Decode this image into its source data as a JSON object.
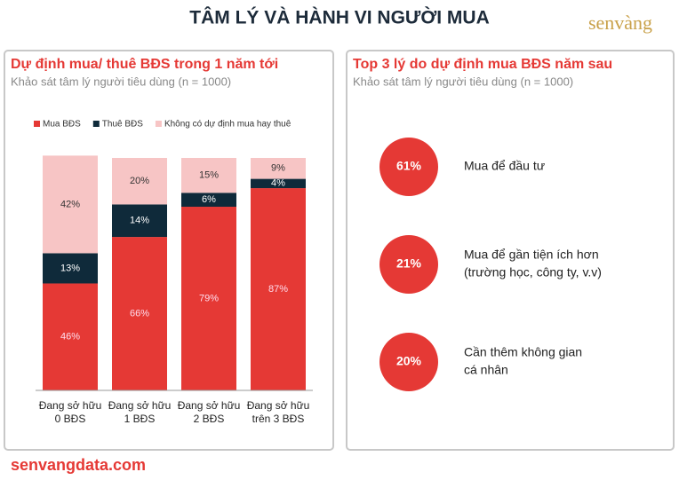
{
  "header": {
    "title": "TÂM LÝ VÀ HÀNH VI NGƯỜI MUA",
    "logo": "senvàng"
  },
  "chart_data": {
    "type": "stacked-bar",
    "title": "Dự định mua/ thuê BĐS trong 1 năm tới",
    "subtitle": "Khảo sát tâm lý người tiêu dùng (n = 1000)",
    "categories": [
      "Đang sở hữu 0 BĐS",
      "Đang sở hữu 1 BĐS",
      "Đang sở hữu 2 BĐS",
      "Đang sở hữu trên 3 BĐS"
    ],
    "series": [
      {
        "name": "Mua BĐS",
        "color": "#e53935",
        "values": [
          46,
          66,
          79,
          87
        ],
        "value_labels": [
          "46%",
          "66%",
          "79%",
          "87%"
        ]
      },
      {
        "name": "Thuê BĐS",
        "color": "#0f2a3a",
        "values": [
          13,
          14,
          6,
          4
        ],
        "value_labels": [
          "13%",
          "14%",
          "6%",
          "4%"
        ]
      },
      {
        "name": "Không có dự định mua hay thuê",
        "color": "#f7c5c5",
        "values": [
          42,
          20,
          15,
          9
        ],
        "value_labels": [
          "42%",
          "20%",
          "15%",
          "9%"
        ]
      }
    ],
    "ylim": [
      0,
      100
    ]
  },
  "reasons": {
    "title": "Top 3 lý do dự định mua BĐS năm sau",
    "subtitle": "Khảo sát tâm lý người tiêu dùng (n = 1000)",
    "items": [
      {
        "label": "61%",
        "lines": [
          "Mua để đầu tư"
        ]
      },
      {
        "label": "21%",
        "lines": [
          "Mua để gần tiện ích hơn",
          "(trường học, công ty, v.v)"
        ]
      },
      {
        "label": "20%",
        "lines": [
          "Cần thêm không gian",
          "cá nhân"
        ]
      }
    ]
  },
  "footer": "senvangdata.com"
}
